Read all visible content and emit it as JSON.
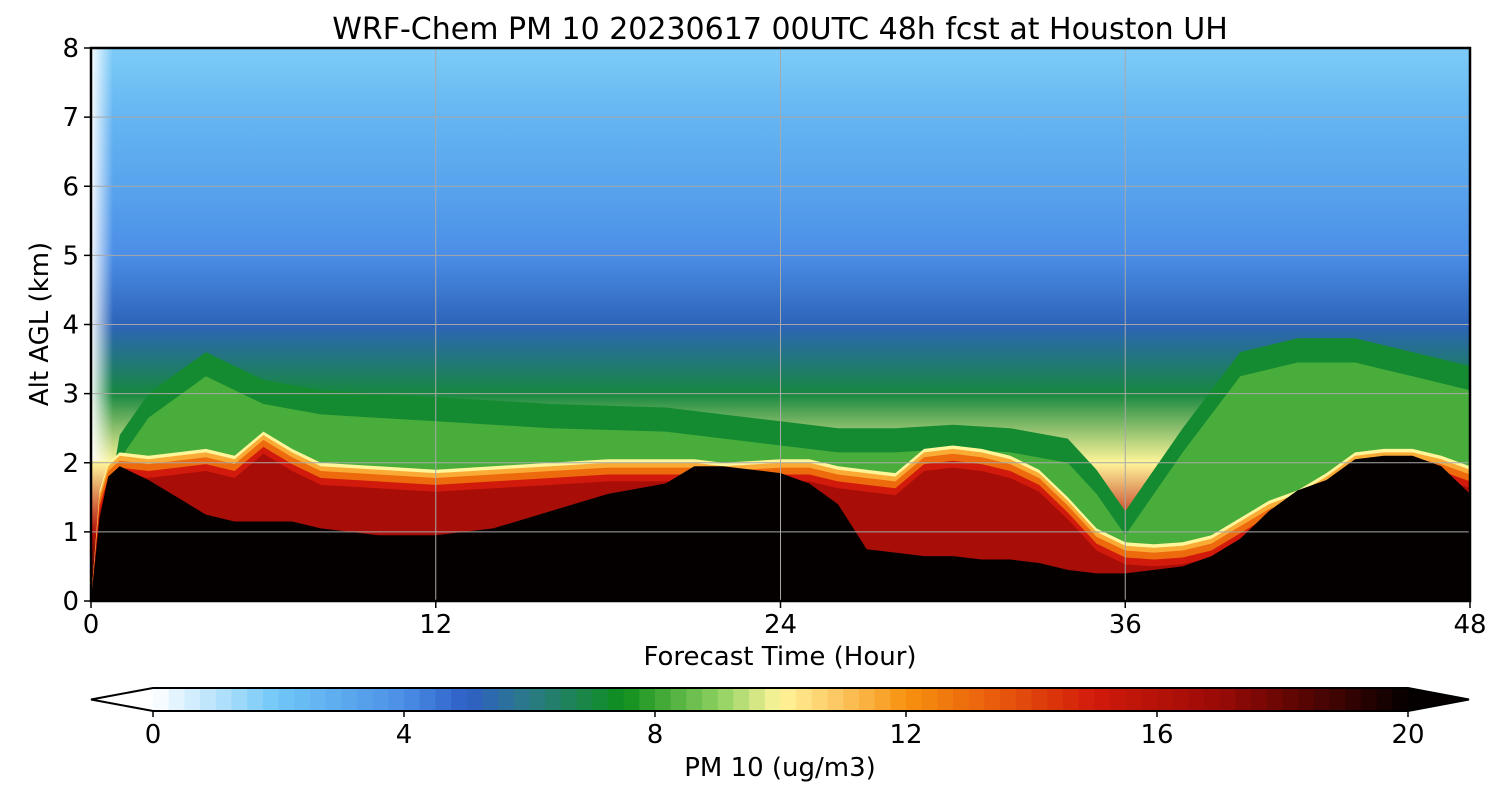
{
  "chart_data": {
    "type": "heatmap",
    "title": "WRF-Chem PM 10  20230617 00UTC 48h fcst at Houston UH",
    "xlabel": "Forecast Time (Hour)",
    "ylabel": "Alt AGL (km)",
    "xlim": [
      0,
      48
    ],
    "ylim": [
      0,
      8
    ],
    "xticks": [
      0,
      12,
      24,
      36,
      48
    ],
    "yticks": [
      0,
      1,
      2,
      3,
      4,
      5,
      6,
      7,
      8
    ],
    "grid": true,
    "colorbar": {
      "label": "PM 10  (ug/m3)",
      "orientation": "horizontal",
      "range": [
        0,
        20
      ],
      "ticks": [
        0,
        4,
        8,
        12,
        16,
        20
      ],
      "extend": "both",
      "stops": [
        {
          "v": 0,
          "c": "#ffffff"
        },
        {
          "v": 2,
          "c": "#6fc6f7"
        },
        {
          "v": 4,
          "c": "#4b8ee6"
        },
        {
          "v": 5,
          "c": "#2e5fc6"
        },
        {
          "v": 6,
          "c": "#2a7a86"
        },
        {
          "v": 7.5,
          "c": "#0e8f1c"
        },
        {
          "v": 9,
          "c": "#8cd060"
        },
        {
          "v": 10,
          "c": "#fff59a"
        },
        {
          "v": 11,
          "c": "#fcc35c"
        },
        {
          "v": 12,
          "c": "#f7920f"
        },
        {
          "v": 13.5,
          "c": "#e8580c"
        },
        {
          "v": 15,
          "c": "#d11a0b"
        },
        {
          "v": 17,
          "c": "#9a0a06"
        },
        {
          "v": 20,
          "c": "#050000"
        }
      ]
    },
    "dense_layer_top_km": {
      "hours": [
        0,
        0.3,
        0.6,
        1,
        2,
        3,
        4,
        5,
        6,
        7,
        8,
        10,
        12,
        14,
        16,
        18,
        20,
        21,
        22,
        24,
        25,
        26,
        27,
        28,
        29,
        30,
        31,
        32,
        33,
        34,
        35,
        36,
        37,
        38,
        39,
        40,
        41,
        42,
        43,
        44,
        45,
        46,
        47,
        48
      ],
      "km": [
        0,
        1.6,
        2.0,
        2.15,
        2.1,
        2.15,
        2.2,
        2.1,
        2.45,
        2.2,
        2.0,
        1.95,
        1.9,
        1.95,
        2.0,
        2.05,
        2.05,
        2.05,
        2.0,
        2.05,
        2.05,
        1.95,
        1.9,
        1.85,
        2.2,
        2.25,
        2.2,
        2.1,
        1.9,
        1.5,
        1.05,
        0.85,
        0.82,
        0.85,
        0.95,
        1.2,
        1.45,
        1.6,
        1.85,
        2.15,
        2.2,
        2.2,
        2.1,
        1.95
      ]
    },
    "saturated_core_top_km": {
      "hours": [
        0,
        0.3,
        0.6,
        1,
        2,
        3,
        4,
        5,
        6,
        7,
        8,
        10,
        12,
        14,
        16,
        18,
        20,
        21,
        22,
        24,
        25,
        26,
        27,
        28,
        29,
        30,
        31,
        32,
        33,
        34,
        35,
        36,
        37,
        38,
        39,
        40,
        41,
        42,
        43,
        44,
        45,
        46,
        47,
        48
      ],
      "km": [
        0,
        1.2,
        1.8,
        1.95,
        1.75,
        1.5,
        1.25,
        1.15,
        1.15,
        1.15,
        1.05,
        0.95,
        0.95,
        1.05,
        1.3,
        1.55,
        1.7,
        1.95,
        1.95,
        1.85,
        1.7,
        1.4,
        0.75,
        0.7,
        0.65,
        0.65,
        0.6,
        0.6,
        0.55,
        0.45,
        0.4,
        0.4,
        0.45,
        0.5,
        0.65,
        0.9,
        1.3,
        1.6,
        1.75,
        2.05,
        2.1,
        2.1,
        1.95,
        1.55
      ]
    },
    "green_layer_top_km": {
      "hours": [
        0,
        1,
        2,
        4,
        6,
        8,
        12,
        16,
        20,
        24,
        26,
        28,
        30,
        32,
        34,
        35,
        36,
        38,
        40,
        42,
        44,
        46,
        48
      ],
      "km": [
        0,
        2.4,
        3.0,
        3.6,
        3.2,
        3.05,
        2.95,
        2.85,
        2.8,
        2.6,
        2.5,
        2.5,
        2.55,
        2.5,
        2.35,
        1.9,
        1.3,
        2.5,
        3.6,
        3.8,
        3.8,
        3.6,
        3.4
      ]
    },
    "lower_troposphere_profile": {
      "km": [
        0,
        1,
        2,
        3,
        4,
        5,
        6,
        7,
        8
      ],
      "ug_m3": [
        20,
        16,
        10,
        7,
        5.2,
        4,
        3.2,
        2.6,
        1.8
      ]
    }
  }
}
